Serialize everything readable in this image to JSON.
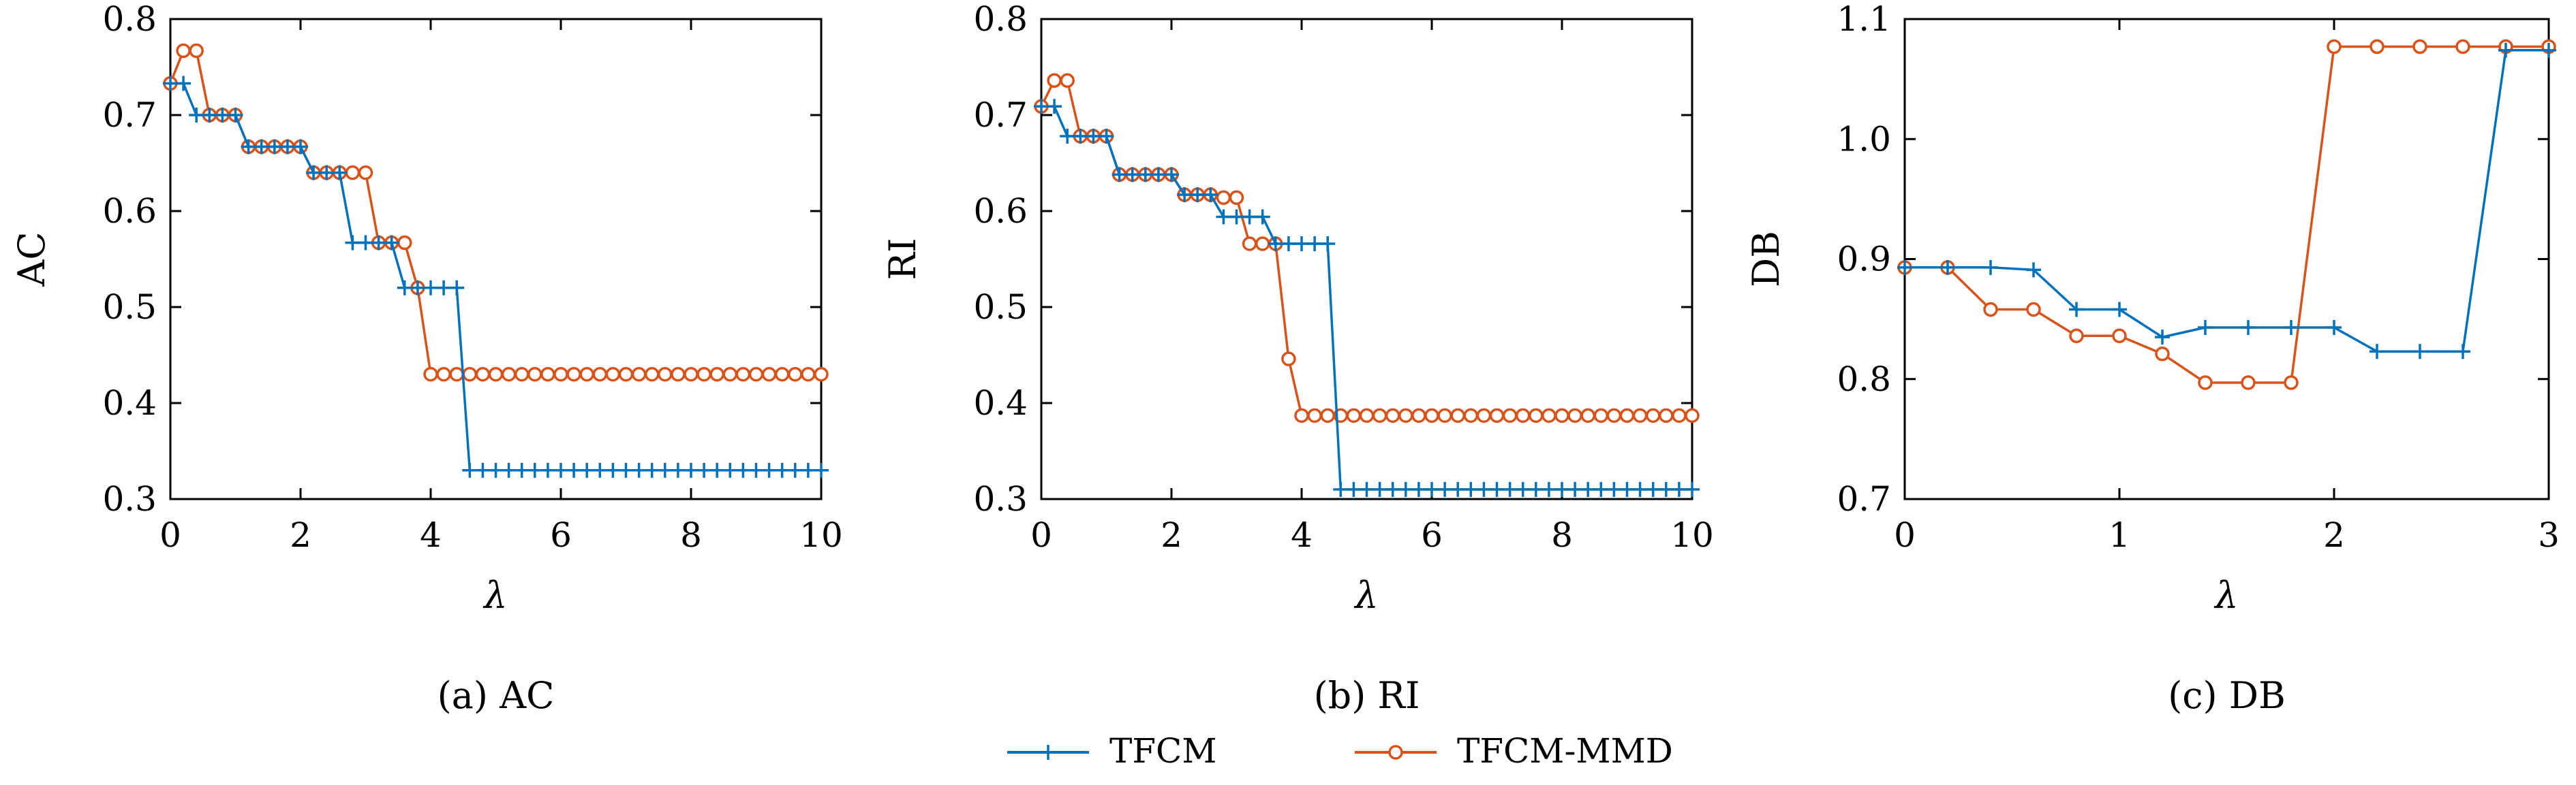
{
  "colors": {
    "series_1": "#0072bd",
    "series_2": "#d95319",
    "axis": "#000000"
  },
  "legend": {
    "entries": [
      "TFCM",
      "TFCM-MMD"
    ],
    "placement": "bottom-center"
  },
  "chart_data": [
    {
      "type": "line",
      "caption": "(a) AC",
      "xlabel": "λ",
      "ylabel": "AC",
      "xlim": [
        0,
        10
      ],
      "ylim": [
        0.3,
        0.8
      ],
      "xticks": [
        "0",
        "2",
        "4",
        "6",
        "8",
        "10"
      ],
      "yticks": [
        "0.3",
        "0.4",
        "0.5",
        "0.6",
        "0.7",
        "0.8"
      ],
      "grid": false,
      "series": [
        {
          "name": "TFCM",
          "marker": "plus",
          "x": [
            0,
            0.2,
            0.4,
            0.6,
            0.8,
            1.0,
            1.2,
            1.4,
            1.6,
            1.8,
            2.0,
            2.2,
            2.4,
            2.6,
            2.8,
            3.0,
            3.2,
            3.4,
            3.6,
            3.8,
            4.0,
            4.2,
            4.4,
            4.6,
            4.8,
            5.0,
            5.2,
            5.4,
            5.6,
            5.8,
            6.0,
            6.2,
            6.4,
            6.6,
            6.8,
            7.0,
            7.2,
            7.4,
            7.6,
            7.8,
            8.0,
            8.2,
            8.4,
            8.6,
            8.8,
            9.0,
            9.2,
            9.4,
            9.6,
            9.8,
            10.0
          ],
          "y": [
            0.733,
            0.733,
            0.7,
            0.7,
            0.7,
            0.7,
            0.667,
            0.667,
            0.667,
            0.667,
            0.667,
            0.64,
            0.64,
            0.64,
            0.567,
            0.567,
            0.567,
            0.567,
            0.52,
            0.52,
            0.52,
            0.52,
            0.52,
            0.33,
            0.33,
            0.33,
            0.33,
            0.33,
            0.33,
            0.33,
            0.33,
            0.33,
            0.33,
            0.33,
            0.33,
            0.33,
            0.33,
            0.33,
            0.33,
            0.33,
            0.33,
            0.33,
            0.33,
            0.33,
            0.33,
            0.33,
            0.33,
            0.33,
            0.33,
            0.33,
            0.33
          ]
        },
        {
          "name": "TFCM-MMD",
          "marker": "circle",
          "x": [
            0,
            0.2,
            0.4,
            0.6,
            0.8,
            1.0,
            1.2,
            1.4,
            1.6,
            1.8,
            2.0,
            2.2,
            2.4,
            2.6,
            2.8,
            3.0,
            3.2,
            3.4,
            3.6,
            3.8,
            4.0,
            4.2,
            4.4,
            4.6,
            4.8,
            5.0,
            5.2,
            5.4,
            5.6,
            5.8,
            6.0,
            6.2,
            6.4,
            6.6,
            6.8,
            7.0,
            7.2,
            7.4,
            7.6,
            7.8,
            8.0,
            8.2,
            8.4,
            8.6,
            8.8,
            9.0,
            9.2,
            9.4,
            9.6,
            9.8,
            10.0
          ],
          "y": [
            0.733,
            0.767,
            0.767,
            0.7,
            0.7,
            0.7,
            0.667,
            0.667,
            0.667,
            0.667,
            0.667,
            0.64,
            0.64,
            0.64,
            0.64,
            0.64,
            0.567,
            0.567,
            0.567,
            0.52,
            0.43,
            0.43,
            0.43,
            0.43,
            0.43,
            0.43,
            0.43,
            0.43,
            0.43,
            0.43,
            0.43,
            0.43,
            0.43,
            0.43,
            0.43,
            0.43,
            0.43,
            0.43,
            0.43,
            0.43,
            0.43,
            0.43,
            0.43,
            0.43,
            0.43,
            0.43,
            0.43,
            0.43,
            0.43,
            0.43,
            0.43
          ]
        }
      ]
    },
    {
      "type": "line",
      "caption": "(b) RI",
      "xlabel": "λ",
      "ylabel": "RI",
      "xlim": [
        0,
        10
      ],
      "ylim": [
        0.3,
        0.8
      ],
      "xticks": [
        "0",
        "2",
        "4",
        "6",
        "8",
        "10"
      ],
      "yticks": [
        "0.3",
        "0.4",
        "0.5",
        "0.6",
        "0.7",
        "0.8"
      ],
      "grid": false,
      "series": [
        {
          "name": "TFCM",
          "marker": "plus",
          "x": [
            0,
            0.2,
            0.4,
            0.6,
            0.8,
            1.0,
            1.2,
            1.4,
            1.6,
            1.8,
            2.0,
            2.2,
            2.4,
            2.6,
            2.8,
            3.0,
            3.2,
            3.4,
            3.6,
            3.8,
            4.0,
            4.2,
            4.4,
            4.6,
            4.8,
            5.0,
            5.2,
            5.4,
            5.6,
            5.8,
            6.0,
            6.2,
            6.4,
            6.6,
            6.8,
            7.0,
            7.2,
            7.4,
            7.6,
            7.8,
            8.0,
            8.2,
            8.4,
            8.6,
            8.8,
            9.0,
            9.2,
            9.4,
            9.6,
            9.8,
            10.0
          ],
          "y": [
            0.709,
            0.709,
            0.678,
            0.678,
            0.678,
            0.678,
            0.638,
            0.638,
            0.638,
            0.638,
            0.638,
            0.617,
            0.617,
            0.617,
            0.594,
            0.594,
            0.594,
            0.594,
            0.566,
            0.566,
            0.566,
            0.566,
            0.566,
            0.31,
            0.31,
            0.31,
            0.31,
            0.31,
            0.31,
            0.31,
            0.31,
            0.31,
            0.31,
            0.31,
            0.31,
            0.31,
            0.31,
            0.31,
            0.31,
            0.31,
            0.31,
            0.31,
            0.31,
            0.31,
            0.31,
            0.31,
            0.31,
            0.31,
            0.31,
            0.31,
            0.31
          ]
        },
        {
          "name": "TFCM-MMD",
          "marker": "circle",
          "x": [
            0,
            0.2,
            0.4,
            0.6,
            0.8,
            1.0,
            1.2,
            1.4,
            1.6,
            1.8,
            2.0,
            2.2,
            2.4,
            2.6,
            2.8,
            3.0,
            3.2,
            3.4,
            3.6,
            3.8,
            4.0,
            4.2,
            4.4,
            4.6,
            4.8,
            5.0,
            5.2,
            5.4,
            5.6,
            5.8,
            6.0,
            6.2,
            6.4,
            6.6,
            6.8,
            7.0,
            7.2,
            7.4,
            7.6,
            7.8,
            8.0,
            8.2,
            8.4,
            8.6,
            8.8,
            9.0,
            9.2,
            9.4,
            9.6,
            9.8,
            10.0
          ],
          "y": [
            0.709,
            0.736,
            0.736,
            0.678,
            0.678,
            0.678,
            0.638,
            0.638,
            0.638,
            0.638,
            0.638,
            0.617,
            0.617,
            0.617,
            0.614,
            0.614,
            0.566,
            0.566,
            0.566,
            0.446,
            0.387,
            0.387,
            0.387,
            0.387,
            0.387,
            0.387,
            0.387,
            0.387,
            0.387,
            0.387,
            0.387,
            0.387,
            0.387,
            0.387,
            0.387,
            0.387,
            0.387,
            0.387,
            0.387,
            0.387,
            0.387,
            0.387,
            0.387,
            0.387,
            0.387,
            0.387,
            0.387,
            0.387,
            0.387,
            0.387,
            0.387
          ]
        }
      ]
    },
    {
      "type": "line",
      "caption": "(c) DB",
      "xlabel": "λ",
      "ylabel": "DB",
      "xlim": [
        0,
        3
      ],
      "ylim": [
        0.7,
        1.1
      ],
      "xticks": [
        "0",
        "1",
        "2",
        "3"
      ],
      "yticks": [
        "0.7",
        "0.8",
        "0.9",
        "1.0",
        "1.1"
      ],
      "grid": false,
      "series": [
        {
          "name": "TFCM",
          "marker": "plus",
          "x": [
            0,
            0.2,
            0.4,
            0.6,
            0.8,
            1.0,
            1.2,
            1.4,
            1.6,
            1.8,
            2.0,
            2.2,
            2.4,
            2.6,
            2.8,
            3.0
          ],
          "y": [
            0.893,
            0.893,
            0.893,
            0.891,
            0.858,
            0.858,
            0.835,
            0.843,
            0.843,
            0.843,
            0.843,
            0.823,
            0.823,
            0.823,
            1.074,
            1.074
          ]
        },
        {
          "name": "TFCM-MMD",
          "marker": "circle",
          "x": [
            0,
            0.2,
            0.4,
            0.6,
            0.8,
            1.0,
            1.2,
            1.4,
            1.6,
            1.8,
            2.0,
            2.2,
            2.4,
            2.6,
            2.8,
            3.0
          ],
          "y": [
            0.893,
            0.893,
            0.858,
            0.858,
            0.836,
            0.836,
            0.821,
            0.797,
            0.797,
            0.797,
            1.077,
            1.077,
            1.077,
            1.077,
            1.077,
            1.077
          ]
        }
      ]
    }
  ]
}
